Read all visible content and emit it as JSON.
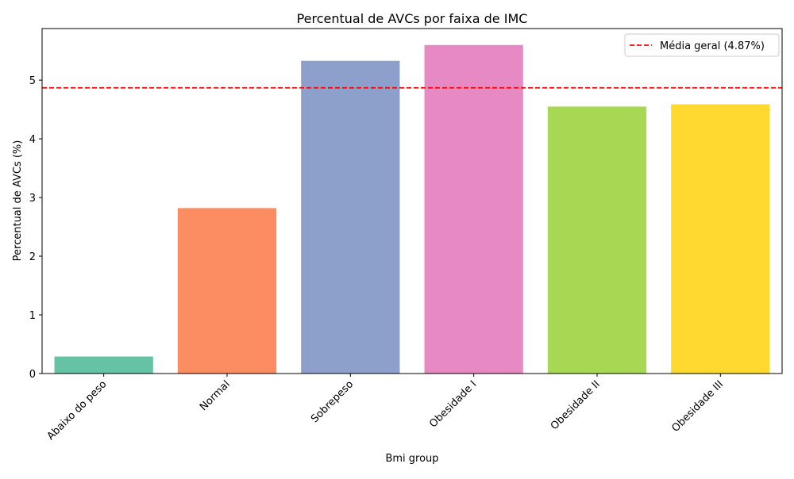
{
  "chart_data": {
    "type": "bar",
    "title": "Percentual de AVCs por faixa de IMC",
    "xlabel": "Bmi group",
    "ylabel": "Percentual de AVCs (%)",
    "categories": [
      "Abaixo do peso",
      "Normal",
      "Sobrepeso",
      "Obesidade I",
      "Obesidade II",
      "Obesidade III"
    ],
    "values": [
      0.29,
      2.82,
      5.33,
      5.6,
      4.55,
      4.59
    ],
    "colors": [
      "#66c2a5",
      "#fc8d62",
      "#8da0cb",
      "#e78ac3",
      "#a6d854",
      "#ffd92f"
    ],
    "ylim": [
      0,
      5.88
    ],
    "yticks": [
      0,
      1,
      2,
      3,
      4,
      5
    ],
    "ytick_labels": [
      "0",
      "1",
      "2",
      "3",
      "4",
      "5"
    ],
    "reference_line": {
      "value": 4.87,
      "label": "Média geral (4.87%)",
      "color": "#ff0000",
      "style": "dashed"
    },
    "legend": {
      "placement": "top-right"
    },
    "grid": false
  }
}
